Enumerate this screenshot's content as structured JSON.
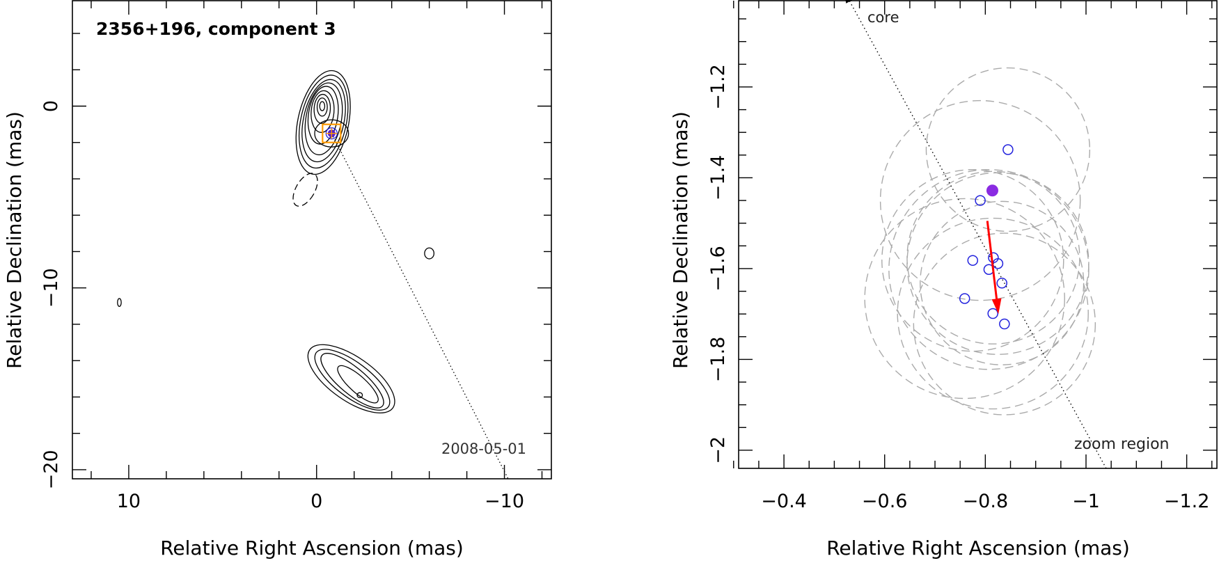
{
  "chart_data": [
    {
      "type": "contour",
      "title": "2356+196, component 3",
      "epoch": "2008-05-01",
      "xlabel": "Relative Right Ascension (mas)",
      "ylabel": "Relative Declination (mas)",
      "xlim": [
        13,
        -12.5
      ],
      "ylim": [
        -20.5,
        5.8
      ],
      "x_reversed": true,
      "xticks": [
        10,
        0,
        -10
      ],
      "yticks": [
        0,
        -10,
        -20
      ],
      "grid": false,
      "component_position": {
        "x": -0.8,
        "y": -1.5
      },
      "jet_direction_line": {
        "from": [
          -0.8,
          -1.5
        ],
        "to": [
          -10.2,
          -20.5
        ],
        "style": "dotted"
      },
      "contours": {
        "core_levels": 9,
        "features": [
          "core",
          "negative contour near (0.6,-5)",
          "islands near (-6,-8.2) and (10.5,-10.8)",
          "extended emission near (-1,-14) to (-3.7,-16.3)"
        ]
      }
    },
    {
      "type": "scatter",
      "title": "",
      "xlabel": "Relative Right Ascension (mas)",
      "ylabel": "Relative Declination (mas)",
      "xlim": [
        -0.31,
        -1.26
      ],
      "ylim": [
        -2.04,
        -1.01
      ],
      "x_reversed": true,
      "xticks": [
        -0.4,
        -0.6,
        -0.8,
        -1,
        -1.2
      ],
      "yticks": [
        -1.2,
        -1.4,
        -1.6,
        -1.8,
        -2
      ],
      "grid": false,
      "annotations": [
        "core",
        "zoom region"
      ],
      "series": [
        {
          "marker": "open-circle",
          "color": "#2222dd",
          "points": [
            {
              "x": -0.845,
              "y": -1.338
            },
            {
              "x": -0.79,
              "y": -1.45
            },
            {
              "x": -0.816,
              "y": -1.576
            },
            {
              "x": -0.825,
              "y": -1.589
            },
            {
              "x": -0.775,
              "y": -1.582
            },
            {
              "x": -0.807,
              "y": -1.602
            },
            {
              "x": -0.833,
              "y": -1.632
            },
            {
              "x": -0.759,
              "y": -1.666
            },
            {
              "x": -0.815,
              "y": -1.699
            },
            {
              "x": -0.838,
              "y": -1.722
            }
          ]
        },
        {
          "marker": "filled-circle",
          "color": "#8a2be2",
          "points": [
            {
              "x": -0.814,
              "y": -1.428
            }
          ]
        }
      ],
      "uncertainty_circles": [
        {
          "x": -0.845,
          "y": -1.338,
          "r": 0.18
        },
        {
          "x": -0.79,
          "y": -1.45,
          "r": 0.22
        },
        {
          "x": -0.816,
          "y": -1.576,
          "r": 0.19
        },
        {
          "x": -0.825,
          "y": -1.589,
          "r": 0.2
        },
        {
          "x": -0.775,
          "y": -1.582,
          "r": 0.2
        },
        {
          "x": -0.807,
          "y": -1.602,
          "r": 0.22
        },
        {
          "x": -0.833,
          "y": -1.632,
          "r": 0.18
        },
        {
          "x": -0.759,
          "y": -1.666,
          "r": 0.22
        },
        {
          "x": -0.815,
          "y": -1.699,
          "r": 0.21
        },
        {
          "x": -0.838,
          "y": -1.722,
          "r": 0.2
        }
      ],
      "motion_vector": {
        "from": [
          -0.804,
          -1.495
        ],
        "to": [
          -0.826,
          -1.7
        ],
        "color": "#ff0000"
      },
      "core_direction_line": {
        "from": [
          -1.04,
          -2.04
        ],
        "to": [
          -0.52,
          -0.99
        ],
        "style": "dotted",
        "arrow": true
      }
    }
  ]
}
